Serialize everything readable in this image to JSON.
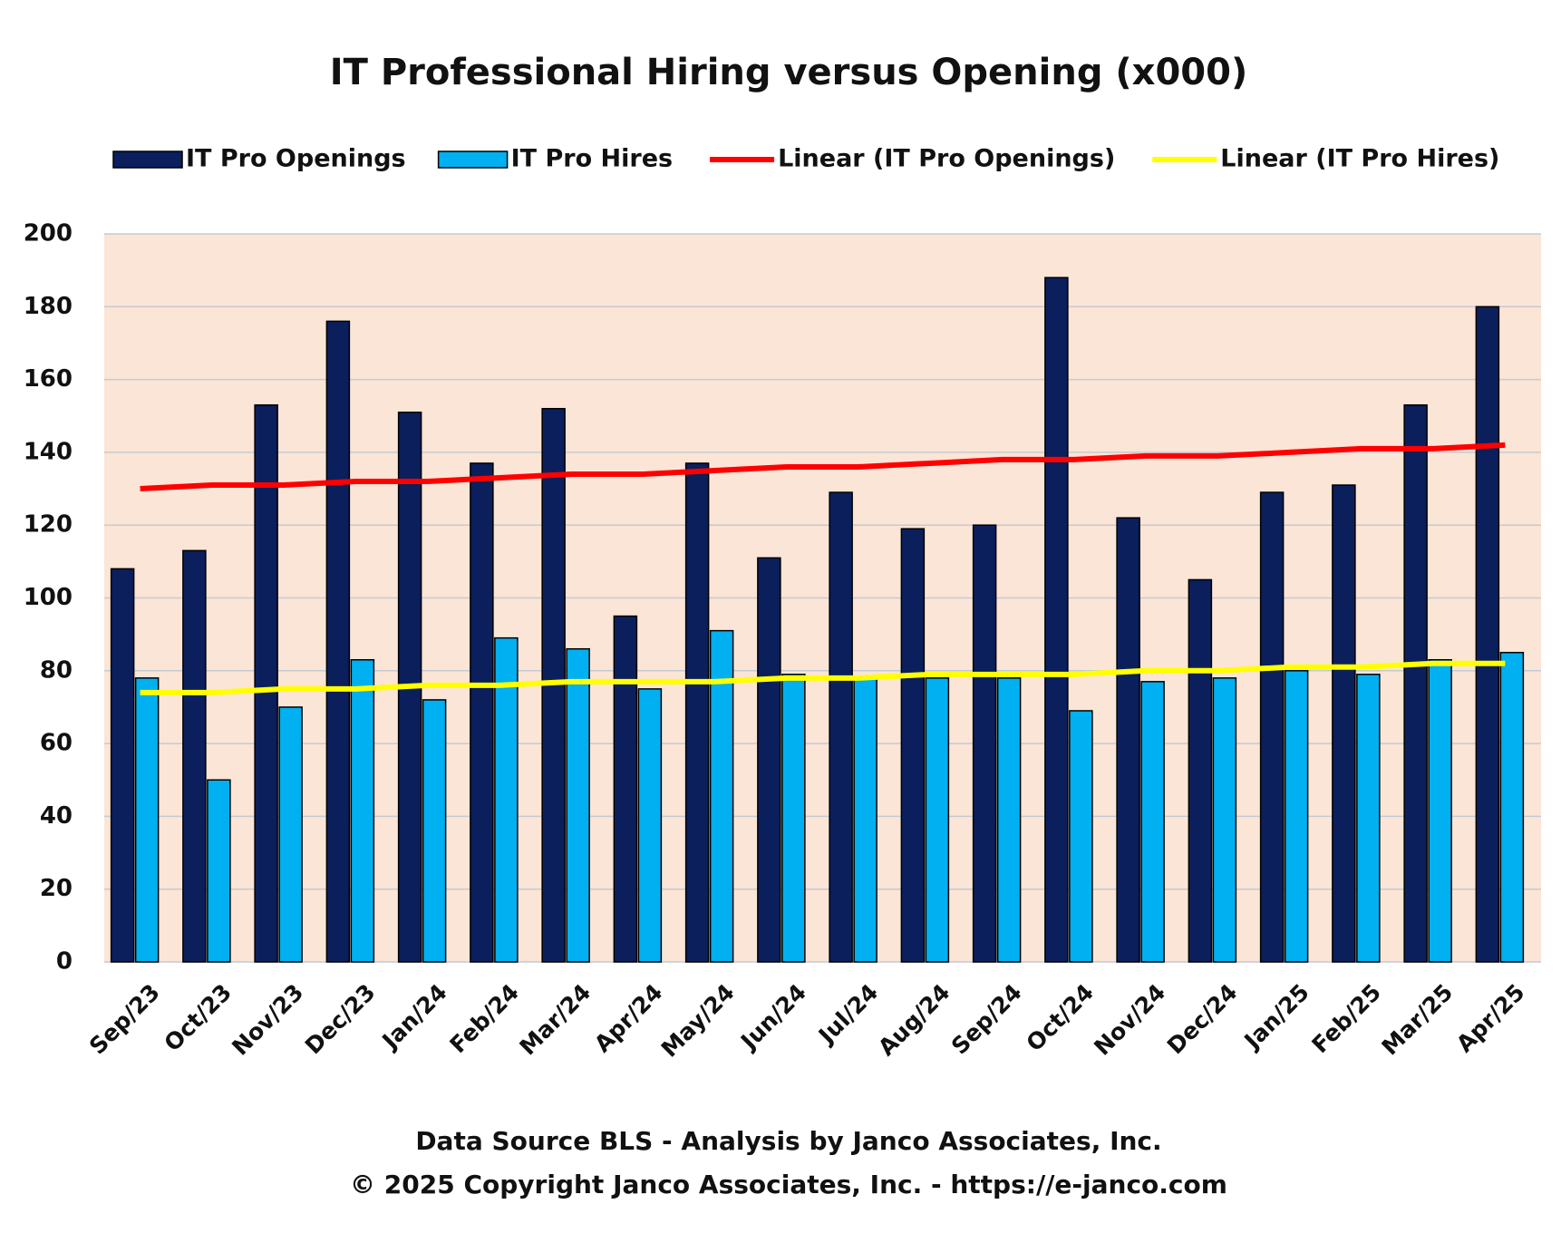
{
  "chart_data": {
    "type": "bar",
    "title": "IT Professional Hiring versus Opening (x000)",
    "categories": [
      "Sep/23",
      "Oct/23",
      "Nov/23",
      "Dec/23",
      "Jan/24",
      "Feb/24",
      "Mar/24",
      "Apr/24",
      "May/24",
      "Jun/24",
      "Jul/24",
      "Aug/24",
      "Sep/24",
      "Oct/24",
      "Nov/24",
      "Dec/24",
      "Jan/25",
      "Feb/25",
      "Mar/25",
      "Apr/25"
    ],
    "series": [
      {
        "name": "IT Pro Openings",
        "type": "bar",
        "color": "#0b1f5c",
        "values": [
          108,
          113,
          153,
          176,
          151,
          137,
          152,
          95,
          137,
          111,
          129,
          119,
          120,
          188,
          122,
          105,
          129,
          131,
          153,
          180
        ]
      },
      {
        "name": "IT Pro Hires",
        "type": "bar",
        "color": "#00b0f0",
        "values": [
          78,
          50,
          70,
          83,
          72,
          89,
          86,
          75,
          91,
          79,
          78,
          78,
          78,
          69,
          77,
          78,
          80,
          79,
          83,
          85
        ]
      },
      {
        "name": "Linear (IT Pro Openings)",
        "type": "line",
        "color": "#ff0000",
        "values": [
          130,
          131,
          131,
          132,
          132,
          133,
          134,
          134,
          135,
          136,
          136,
          137,
          138,
          138,
          139,
          139,
          140,
          141,
          141,
          142
        ]
      },
      {
        "name": "Linear (IT Pro Hires)",
        "type": "line",
        "color": "#ffff00",
        "values": [
          74,
          74,
          75,
          75,
          76,
          76,
          77,
          77,
          77,
          78,
          78,
          79,
          79,
          79,
          80,
          80,
          81,
          81,
          82,
          82
        ]
      }
    ],
    "ylim": [
      0,
      200
    ],
    "yticks": [
      0,
      20,
      40,
      60,
      80,
      100,
      120,
      140,
      160,
      180,
      200
    ],
    "grid": true,
    "footer": [
      "Data Source BLS - Analysis  by Janco  Associates,  Inc.",
      "© 2025 Copyright Janco  Associates,  Inc. - https://e-janco.com"
    ]
  }
}
